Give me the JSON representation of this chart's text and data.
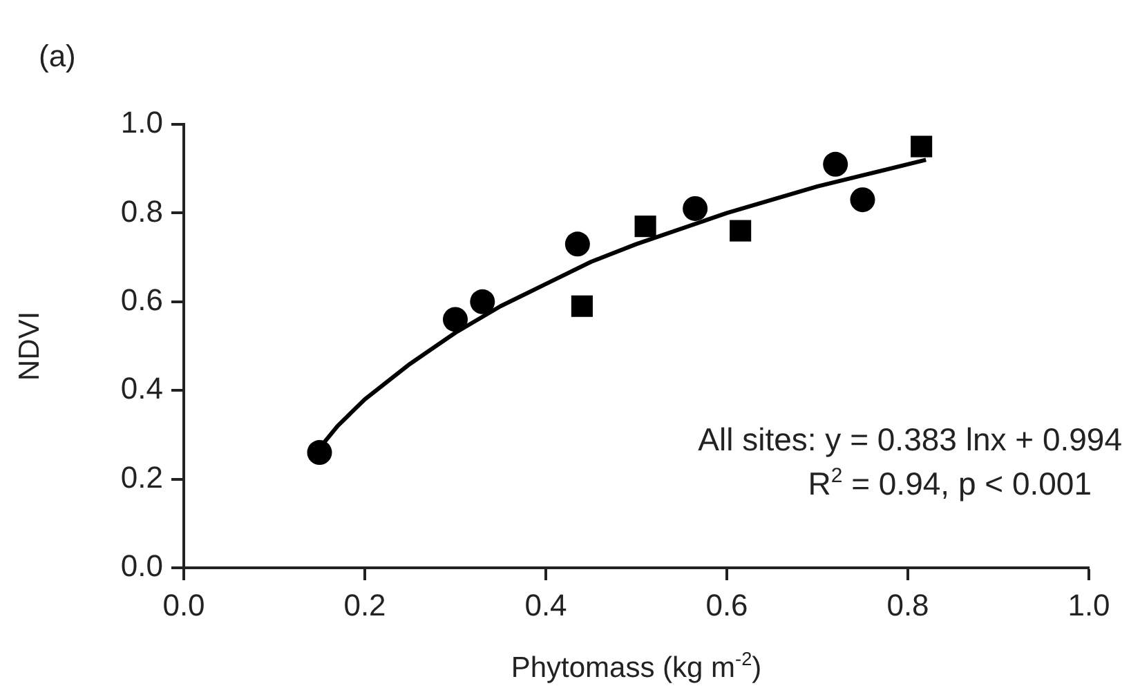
{
  "chart_data": {
    "type": "scatter",
    "title": "(a)",
    "xlabel": "Phytomass (kg m$^{-2}$)",
    "ylabel": "NDVI",
    "xlim": [
      0,
      1
    ],
    "ylim": [
      0,
      1
    ],
    "xticks": [
      {
        "value": 0,
        "label": "0.0"
      },
      {
        "value": 0.2,
        "label": "0.2"
      },
      {
        "value": 0.4,
        "label": "0.4"
      },
      {
        "value": 0.6,
        "label": "0.6"
      },
      {
        "value": 0.8,
        "label": "0.8"
      },
      {
        "value": 1,
        "label": "1.0"
      }
    ],
    "yticks": [
      {
        "value": 0,
        "label": "0.0"
      },
      {
        "value": 0.2,
        "label": "0.2"
      },
      {
        "value": 0.4,
        "label": "0.4"
      },
      {
        "value": 0.6,
        "label": "0.6"
      },
      {
        "value": 0.8,
        "label": "0.8"
      },
      {
        "value": 1,
        "label": "1.0"
      }
    ],
    "grid": false,
    "legend": false,
    "series": [
      {
        "marker": "circle",
        "color": "#000000",
        "x": [
          0.15,
          0.3,
          0.33,
          0.435,
          0.565,
          0.72,
          0.75
        ],
        "values": [
          0.26,
          0.56,
          0.6,
          0.73,
          0.81,
          0.91,
          0.83
        ]
      },
      {
        "marker": "square",
        "color": "#000000",
        "x": [
          0.44,
          0.51,
          0.615,
          0.815
        ],
        "values": [
          0.59,
          0.77,
          0.76,
          0.95
        ]
      },
      {
        "type": "line",
        "marker": "none",
        "line_style": "solid",
        "color": "#000000",
        "x": [
          0.15,
          0.17,
          0.2,
          0.25,
          0.3,
          0.35,
          0.4,
          0.45,
          0.5,
          0.6,
          0.7,
          0.82
        ],
        "values": [
          0.27,
          0.32,
          0.38,
          0.46,
          0.53,
          0.59,
          0.64,
          0.69,
          0.73,
          0.8,
          0.86,
          0.92
        ]
      }
    ],
    "annotations": [
      "All sites: y = 0.383 lnx + 0.994",
      "R$^{2}$ = 0.94, p < 0.001"
    ]
  }
}
